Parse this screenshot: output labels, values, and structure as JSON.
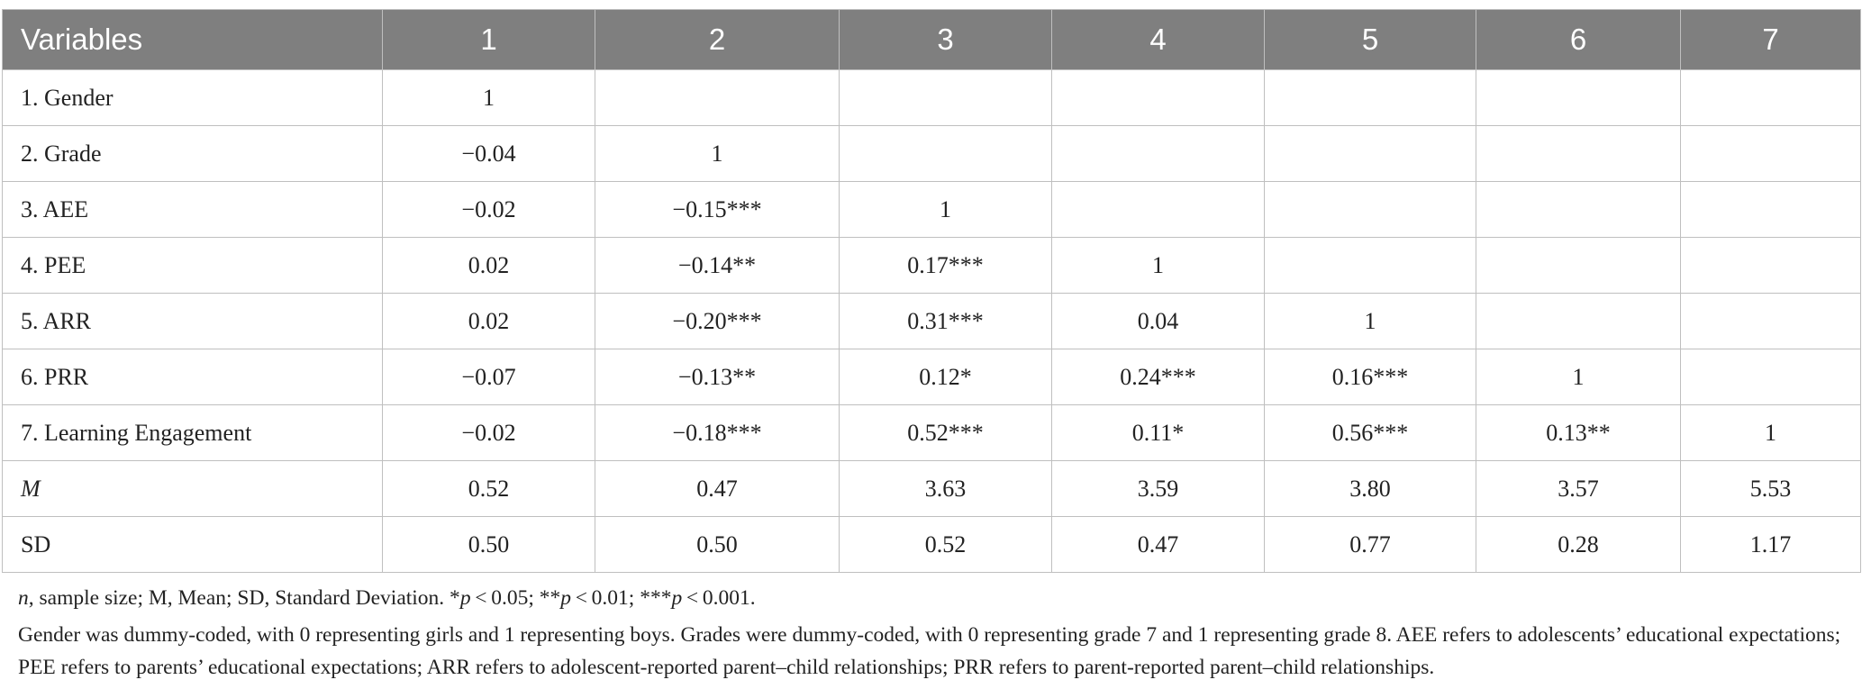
{
  "table": {
    "header": [
      "Variables",
      "1",
      "2",
      "3",
      "4",
      "5",
      "6",
      "7"
    ],
    "rows": [
      [
        "1. Gender",
        "1",
        null,
        null,
        null,
        null,
        null,
        null
      ],
      [
        "2. Grade",
        "−0.04",
        "1",
        null,
        null,
        null,
        null,
        null
      ],
      [
        "3. AEE",
        "−0.02",
        "−0.15***",
        "1",
        null,
        null,
        null,
        null
      ],
      [
        "4. PEE",
        "0.02",
        "−0.14**",
        "0.17***",
        "1",
        null,
        null,
        null
      ],
      [
        "5. ARR",
        "0.02",
        "−0.20***",
        "0.31***",
        "0.04",
        "1",
        null,
        null
      ],
      [
        "6. PRR",
        "−0.07",
        "−0.13**",
        "0.12*",
        "0.24***",
        "0.16***",
        "1",
        null
      ],
      [
        "7. Learning Engagement",
        "−0.02",
        "−0.18***",
        "0.52***",
        "0.11*",
        "0.56***",
        "0.13**",
        "1"
      ],
      [
        "M",
        "0.52",
        "0.47",
        "3.63",
        "3.59",
        "3.80",
        "3.57",
        "5.53"
      ],
      [
        "SD",
        "0.50",
        "0.50",
        "0.52",
        "0.47",
        "0.77",
        "0.28",
        "1.17"
      ]
    ]
  },
  "footnotes": {
    "line1": [
      "n",
      ", sample size; M, Mean; SD, Standard Deviation. *",
      "p",
      " < 0.05; **",
      "p",
      " < 0.01; ***",
      "p",
      " < 0.001."
    ],
    "line2": "Gender was dummy-coded, with 0 representing girls and 1 representing boys. Grades were dummy-coded, with 0 representing grade 7 and 1 representing grade 8. AEE refers to adolescents’ educational expectations; PEE refers to parents’ educational expectations; ARR refers to adolescent-reported parent–child relationships; PRR refers to parent-reported parent–child relationships."
  }
}
